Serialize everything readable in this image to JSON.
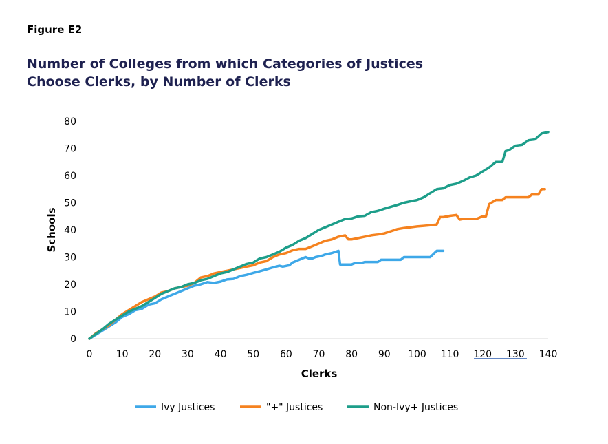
{
  "figure_label": "Figure E2",
  "title_lines": [
    "Number of Colleges from which Categories of Justices",
    "Choose Clerks, by Number of Clerks"
  ],
  "chart_data": {
    "type": "line",
    "xlabel": "Clerks",
    "ylabel": "Schools",
    "xlim": [
      0,
      140
    ],
    "ylim": [
      0,
      80
    ],
    "xticks": [
      0,
      10,
      20,
      30,
      40,
      50,
      60,
      70,
      80,
      90,
      100,
      110,
      120,
      130,
      140
    ],
    "yticks": [
      0,
      10,
      20,
      30,
      40,
      50,
      60,
      70,
      80
    ],
    "grid": false,
    "legend_position": "bottom",
    "series": [
      {
        "name": "Ivy Justices",
        "color": "#3ea8e8",
        "points": [
          [
            0,
            0
          ],
          [
            2,
            1.5
          ],
          [
            4,
            3
          ],
          [
            6,
            4.5
          ],
          [
            8,
            6
          ],
          [
            10,
            8
          ],
          [
            12,
            9
          ],
          [
            14,
            10.5
          ],
          [
            16,
            11
          ],
          [
            18,
            12.5
          ],
          [
            20,
            13
          ],
          [
            22,
            14.5
          ],
          [
            24,
            15.5
          ],
          [
            26,
            16.5
          ],
          [
            28,
            17.5
          ],
          [
            30,
            18.5
          ],
          [
            32,
            19.5
          ],
          [
            34,
            20
          ],
          [
            36,
            20.8
          ],
          [
            38,
            20.5
          ],
          [
            40,
            21
          ],
          [
            42,
            21.8
          ],
          [
            44,
            22
          ],
          [
            46,
            23
          ],
          [
            48,
            23.5
          ],
          [
            50,
            24.2
          ],
          [
            52,
            24.8
          ],
          [
            54,
            25.5
          ],
          [
            56,
            26.2
          ],
          [
            58,
            26.8
          ],
          [
            59,
            26.5
          ],
          [
            61,
            27
          ],
          [
            62,
            28
          ],
          [
            64,
            29
          ],
          [
            66,
            30
          ],
          [
            67,
            29.5
          ],
          [
            68,
            29.5
          ],
          [
            69,
            30
          ],
          [
            71,
            30.5
          ],
          [
            72,
            31
          ],
          [
            74,
            31.5
          ],
          [
            76,
            32.3
          ],
          [
            76.5,
            27.3
          ],
          [
            80,
            27.3
          ],
          [
            81,
            27.8
          ],
          [
            83,
            27.8
          ],
          [
            84,
            28.2
          ],
          [
            88,
            28.2
          ],
          [
            89,
            29
          ],
          [
            95,
            29
          ],
          [
            96,
            30
          ],
          [
            104,
            30
          ],
          [
            106,
            32.3
          ],
          [
            108,
            32.3
          ]
        ]
      },
      {
        "name": "\"+\" Justices",
        "color": "#f5821f",
        "points": [
          [
            0,
            0
          ],
          [
            2,
            2
          ],
          [
            4,
            3.5
          ],
          [
            6,
            5
          ],
          [
            8,
            7
          ],
          [
            10,
            9
          ],
          [
            12,
            10.5
          ],
          [
            14,
            12
          ],
          [
            16,
            13.5
          ],
          [
            18,
            14.5
          ],
          [
            20,
            15.5
          ],
          [
            22,
            17
          ],
          [
            24,
            17.5
          ],
          [
            26,
            18.5
          ],
          [
            28,
            19
          ],
          [
            30,
            19.5
          ],
          [
            32,
            20.5
          ],
          [
            34,
            22.5
          ],
          [
            36,
            23
          ],
          [
            38,
            24
          ],
          [
            40,
            24.5
          ],
          [
            42,
            25
          ],
          [
            44,
            25.5
          ],
          [
            46,
            26
          ],
          [
            48,
            26.5
          ],
          [
            50,
            27
          ],
          [
            52,
            28
          ],
          [
            54,
            28.5
          ],
          [
            56,
            30
          ],
          [
            58,
            31
          ],
          [
            60,
            31.5
          ],
          [
            62,
            32.5
          ],
          [
            64,
            33
          ],
          [
            66,
            33
          ],
          [
            68,
            34
          ],
          [
            70,
            35
          ],
          [
            72,
            36
          ],
          [
            74,
            36.5
          ],
          [
            76,
            37.5
          ],
          [
            78,
            38
          ],
          [
            79,
            36.5
          ],
          [
            80,
            36.5
          ],
          [
            82,
            37
          ],
          [
            84,
            37.5
          ],
          [
            86,
            38
          ],
          [
            88,
            38.3
          ],
          [
            90,
            38.7
          ],
          [
            92,
            39.5
          ],
          [
            94,
            40.3
          ],
          [
            96,
            40.7
          ],
          [
            98,
            41
          ],
          [
            100,
            41.3
          ],
          [
            102,
            41.5
          ],
          [
            104,
            41.7
          ],
          [
            106,
            42
          ],
          [
            107,
            44.7
          ],
          [
            108,
            44.7
          ],
          [
            110,
            45.2
          ],
          [
            112,
            45.5
          ],
          [
            113,
            43.8
          ],
          [
            114,
            44
          ],
          [
            118,
            44
          ],
          [
            120,
            45
          ],
          [
            121,
            45
          ],
          [
            122,
            49.5
          ],
          [
            124,
            51
          ],
          [
            126,
            51
          ],
          [
            127,
            52
          ],
          [
            134,
            52
          ],
          [
            135,
            53
          ],
          [
            137,
            53
          ],
          [
            138,
            55
          ],
          [
            139,
            55
          ]
        ]
      },
      {
        "name": "Non-Ivy+ Justices",
        "color": "#1d9e8a",
        "points": [
          [
            0,
            0
          ],
          [
            2,
            1.8
          ],
          [
            4,
            3.5
          ],
          [
            6,
            5.5
          ],
          [
            8,
            7
          ],
          [
            10,
            8.5
          ],
          [
            12,
            10
          ],
          [
            14,
            11
          ],
          [
            16,
            12
          ],
          [
            18,
            13.5
          ],
          [
            20,
            15
          ],
          [
            22,
            16.5
          ],
          [
            24,
            17.5
          ],
          [
            26,
            18.5
          ],
          [
            28,
            19
          ],
          [
            30,
            20
          ],
          [
            32,
            20.5
          ],
          [
            34,
            21.5
          ],
          [
            36,
            22
          ],
          [
            38,
            23
          ],
          [
            40,
            24
          ],
          [
            42,
            24.5
          ],
          [
            44,
            25.5
          ],
          [
            46,
            26.5
          ],
          [
            48,
            27.5
          ],
          [
            50,
            28
          ],
          [
            52,
            29.5
          ],
          [
            54,
            30
          ],
          [
            56,
            31
          ],
          [
            58,
            32
          ],
          [
            60,
            33.5
          ],
          [
            62,
            34.5
          ],
          [
            64,
            36
          ],
          [
            66,
            37
          ],
          [
            68,
            38.5
          ],
          [
            70,
            40
          ],
          [
            72,
            41
          ],
          [
            74,
            42
          ],
          [
            76,
            43
          ],
          [
            78,
            44
          ],
          [
            80,
            44.2
          ],
          [
            82,
            45
          ],
          [
            84,
            45.2
          ],
          [
            86,
            46.5
          ],
          [
            88,
            47
          ],
          [
            90,
            47.8
          ],
          [
            92,
            48.5
          ],
          [
            94,
            49.2
          ],
          [
            96,
            50
          ],
          [
            98,
            50.5
          ],
          [
            100,
            51
          ],
          [
            102,
            52
          ],
          [
            104,
            53.5
          ],
          [
            106,
            55
          ],
          [
            108,
            55.3
          ],
          [
            110,
            56.5
          ],
          [
            112,
            57
          ],
          [
            114,
            58
          ],
          [
            116,
            59.3
          ],
          [
            118,
            60
          ],
          [
            120,
            61.5
          ],
          [
            122,
            63
          ],
          [
            124,
            65
          ],
          [
            126,
            65
          ],
          [
            127,
            69
          ],
          [
            128,
            69.3
          ],
          [
            130,
            71
          ],
          [
            132,
            71.3
          ],
          [
            134,
            73
          ],
          [
            136,
            73.3
          ],
          [
            138,
            75.5
          ],
          [
            140,
            76
          ]
        ]
      }
    ]
  }
}
